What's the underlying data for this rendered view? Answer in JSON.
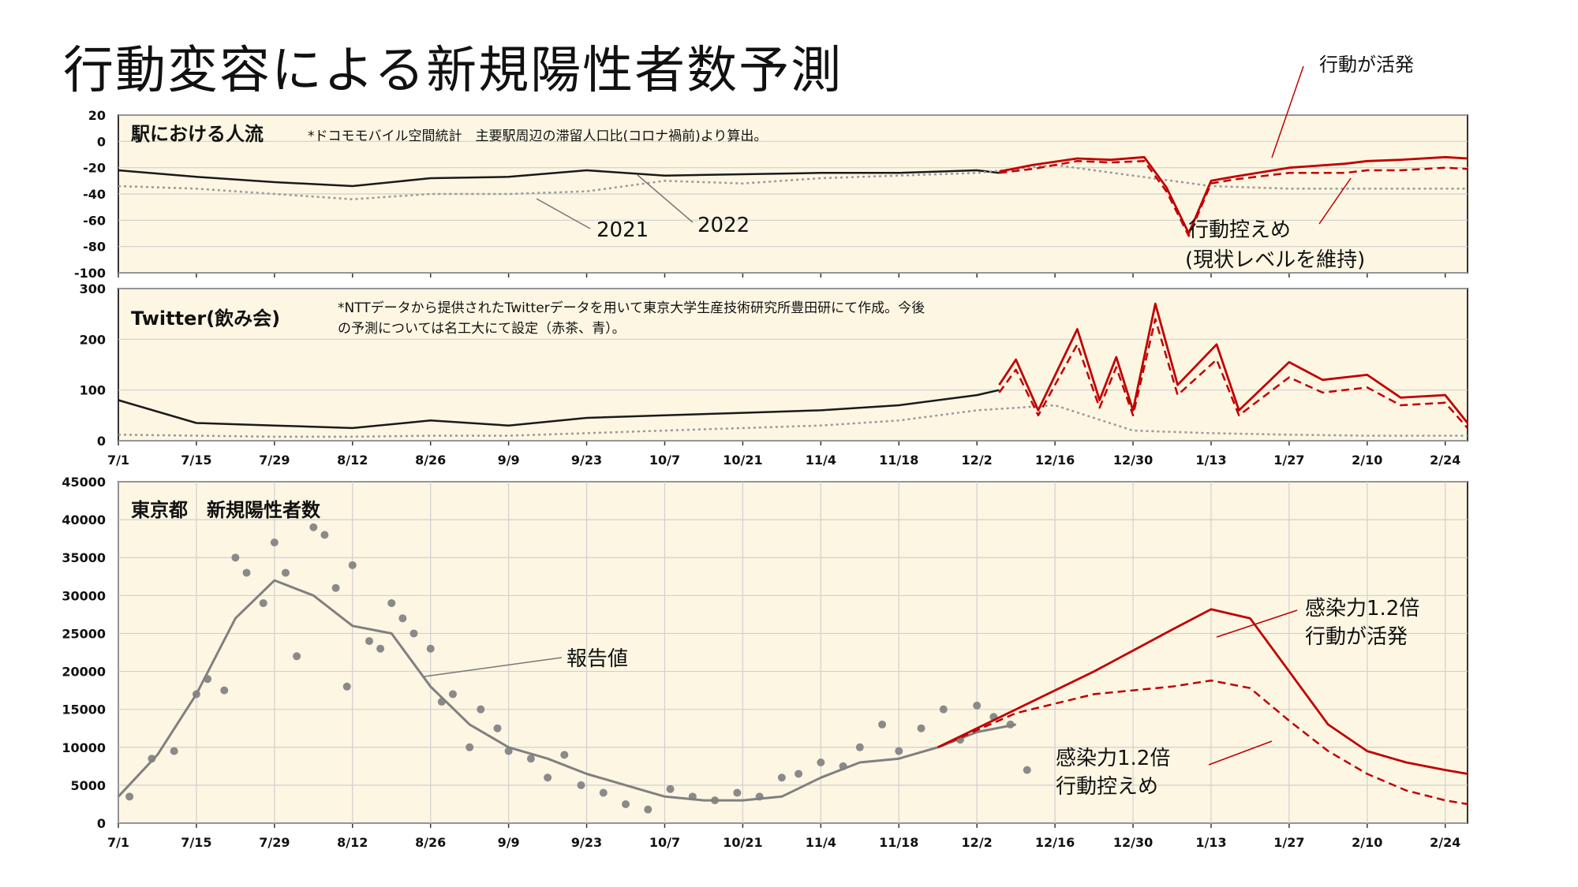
{
  "title": "行動変容による新規陽性者数予測",
  "date_labels": [
    "7/1",
    "7/15",
    "7/29",
    "8/12",
    "8/26",
    "9/9",
    "9/23",
    "10/7",
    "10/21",
    "11/4",
    "11/18",
    "12/2",
    "12/16",
    "12/30",
    "1/13",
    "1/27",
    "2/10",
    "2/24"
  ],
  "colors": {
    "observed": "#1a1a1a",
    "previous_year": "#999999",
    "forecast": "#c00000",
    "panel_bg": "#fdf6e3",
    "grid": "#d0d0d0"
  },
  "chart_data": [
    {
      "type": "line",
      "panel_title": "駅における人流",
      "note": "*ドコモモバイル空間統計　主要駅周辺の滞留人口比(コロナ禍前)より算出。",
      "ylim": [
        -100,
        20
      ],
      "y_ticks": [
        "20",
        "0",
        "-20",
        "-40",
        "-60",
        "-80",
        "-100"
      ],
      "x_range_days": [
        0,
        242
      ],
      "annotations": {
        "y2021": "2021",
        "y2022": "2022",
        "active": "行動が活発",
        "restrained": "行動控えめ",
        "restrained_2": "(現状レベルを維持)"
      },
      "series": [
        {
          "name": "2022",
          "style": "observed",
          "x": [
            0,
            14,
            28,
            42,
            56,
            70,
            84,
            98,
            112,
            126,
            140,
            154,
            158
          ],
          "values": [
            -22,
            -27,
            -31,
            -34,
            -28,
            -27,
            -22,
            -26,
            -25,
            -24,
            -24,
            -22,
            -24
          ]
        },
        {
          "name": "2021",
          "style": "previous_year",
          "x": [
            0,
            14,
            28,
            42,
            56,
            70,
            84,
            98,
            112,
            126,
            140,
            154,
            168,
            182,
            196,
            210,
            224,
            238,
            242
          ],
          "values": [
            -34,
            -36,
            -40,
            -44,
            -40,
            -40,
            -38,
            -30,
            -32,
            -28,
            -26,
            -24,
            -18,
            -26,
            -34,
            -36,
            -36,
            -36,
            -36
          ]
        },
        {
          "name": "行動が活発",
          "style": "forecast-solid",
          "x": [
            158,
            164,
            172,
            178,
            184,
            188,
            192,
            196,
            200,
            210,
            220,
            224,
            230,
            238,
            242
          ],
          "values": [
            -23,
            -18,
            -13,
            -14,
            -12,
            -35,
            -70,
            -30,
            -27,
            -20,
            -17,
            -15,
            -14,
            -12,
            -13
          ]
        },
        {
          "name": "行動控えめ",
          "style": "forecast-dashed",
          "x": [
            158,
            164,
            172,
            178,
            184,
            188,
            192,
            196,
            200,
            210,
            220,
            224,
            230,
            238,
            242
          ],
          "values": [
            -24,
            -21,
            -15,
            -16,
            -15,
            -38,
            -72,
            -32,
            -29,
            -24,
            -24,
            -22,
            -22,
            -20,
            -21
          ]
        }
      ]
    },
    {
      "type": "line",
      "panel_title": "Twitter(飲み会)",
      "note_lines": [
        "*NTTデータから提供されたTwitterデータを用いて東京大学生産技術研究所豊田研にて作成。今後",
        "の予測については名工大にて設定（赤茶、青）。"
      ],
      "ylim": [
        0,
        300
      ],
      "y_ticks": [
        "300",
        "200",
        "100",
        "0"
      ],
      "x_range_days": [
        0,
        242
      ],
      "series": [
        {
          "name": "observed",
          "style": "observed",
          "x": [
            0,
            14,
            28,
            42,
            56,
            70,
            84,
            98,
            112,
            126,
            140,
            154,
            158
          ],
          "values": [
            80,
            35,
            30,
            25,
            40,
            30,
            45,
            50,
            55,
            60,
            70,
            90,
            100
          ]
        },
        {
          "name": "previous_year",
          "style": "previous_year",
          "x": [
            0,
            14,
            28,
            42,
            56,
            70,
            84,
            98,
            112,
            126,
            140,
            154,
            168,
            182,
            196,
            210,
            224,
            238,
            242
          ],
          "values": [
            12,
            10,
            8,
            8,
            10,
            10,
            15,
            20,
            25,
            30,
            40,
            60,
            70,
            20,
            15,
            12,
            10,
            10,
            10
          ]
        },
        {
          "name": "行動が活発",
          "style": "forecast-solid",
          "x": [
            158,
            161,
            165,
            172,
            176,
            179,
            182,
            186,
            190,
            197,
            201,
            210,
            216,
            224,
            230,
            238,
            242
          ],
          "values": [
            110,
            160,
            60,
            220,
            80,
            165,
            60,
            270,
            110,
            190,
            60,
            155,
            120,
            130,
            85,
            90,
            35
          ]
        },
        {
          "name": "行動控えめ",
          "style": "forecast-dashed",
          "x": [
            158,
            161,
            165,
            172,
            176,
            179,
            182,
            186,
            190,
            197,
            201,
            210,
            216,
            224,
            230,
            238,
            242
          ],
          "values": [
            95,
            140,
            50,
            190,
            65,
            145,
            50,
            240,
            90,
            160,
            50,
            125,
            95,
            105,
            70,
            75,
            25
          ]
        }
      ]
    },
    {
      "type": "line",
      "panel_title": "東京都　新規陽性者数",
      "ylim": [
        0,
        45000
      ],
      "y_ticks": [
        "45000",
        "40000",
        "35000",
        "30000",
        "25000",
        "20000",
        "15000",
        "10000",
        "5000",
        "0"
      ],
      "x_range_days": [
        0,
        242
      ],
      "annotations": {
        "reported": "報告値",
        "active_1": "感染力1.2倍",
        "active_2": "行動が活発",
        "restrained_1": "感染力1.2倍",
        "restrained_2": "行動控えめ"
      },
      "series": [
        {
          "name": "報告値",
          "style": "reported-line",
          "x": [
            0,
            7,
            14,
            21,
            28,
            35,
            42,
            49,
            56,
            63,
            70,
            77,
            84,
            91,
            98,
            105,
            112,
            119,
            126,
            133,
            140,
            147,
            154,
            161
          ],
          "values": [
            3500,
            9000,
            17000,
            27000,
            32000,
            30000,
            26000,
            25000,
            18000,
            13000,
            10000,
            8500,
            6500,
            5000,
            3500,
            3000,
            3000,
            3500,
            6000,
            8000,
            8500,
            10000,
            12000,
            13000
          ]
        },
        {
          "name": "行動が活発",
          "style": "forecast-solid",
          "x": [
            147,
            161,
            175,
            189,
            196,
            203,
            210,
            217,
            224,
            231,
            238,
            242
          ],
          "values": [
            10000,
            15000,
            20000,
            25500,
            28200,
            27000,
            20000,
            13000,
            9500,
            8000,
            7000,
            6500
          ]
        },
        {
          "name": "行動控えめ",
          "style": "forecast-dashed",
          "x": [
            147,
            161,
            175,
            189,
            196,
            203,
            210,
            217,
            224,
            231,
            238,
            242
          ],
          "values": [
            10000,
            14500,
            17000,
            18000,
            18800,
            17800,
            13500,
            9500,
            6500,
            4300,
            3000,
            2500
          ]
        },
        {
          "name": "reported-points",
          "style": "scatter",
          "x": [
            2,
            6,
            10,
            14,
            16,
            19,
            21,
            23,
            26,
            28,
            30,
            32,
            35,
            37,
            39,
            41,
            42,
            45,
            47,
            49,
            51,
            53,
            56,
            58,
            60,
            63,
            65,
            68,
            70,
            74,
            77,
            80,
            83,
            87,
            91,
            95,
            99,
            103,
            107,
            111,
            115,
            119,
            122,
            126,
            130,
            133,
            137,
            140,
            144,
            148,
            151,
            154,
            157,
            160,
            163
          ],
          "values": [
            3500,
            8500,
            9500,
            17000,
            19000,
            17500,
            35000,
            33000,
            29000,
            37000,
            33000,
            22000,
            39000,
            38000,
            31000,
            18000,
            34000,
            24000,
            23000,
            29000,
            27000,
            25000,
            23000,
            16000,
            17000,
            10000,
            15000,
            12500,
            9500,
            8500,
            6000,
            9000,
            5000,
            4000,
            2500,
            1800,
            4500,
            3500,
            3000,
            4000,
            3500,
            6000,
            6500,
            8000,
            7500,
            10000,
            13000,
            9500,
            12500,
            15000,
            11000,
            15500,
            14000,
            13000,
            7000
          ]
        }
      ]
    }
  ]
}
